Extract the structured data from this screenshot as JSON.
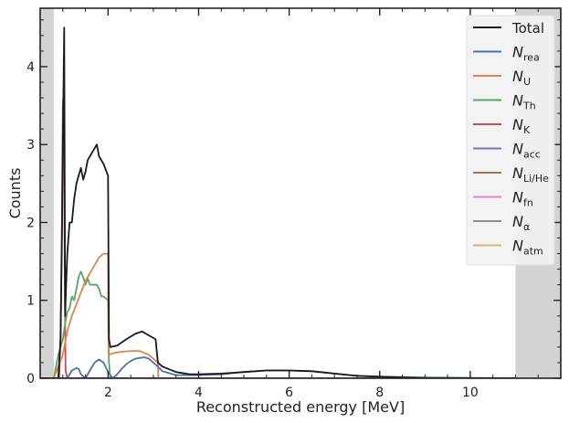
{
  "chart_data": {
    "type": "line",
    "title": "",
    "xlabel": "Reconstructed energy [MeV]",
    "ylabel": "Counts",
    "xlim": [
      0.5,
      12.0
    ],
    "ylim": [
      0,
      4.75
    ],
    "x_ticks": [
      2,
      4,
      6,
      8,
      10
    ],
    "x_tick_labels": [
      "2",
      "4",
      "6",
      "8",
      "10"
    ],
    "y_ticks": [
      0,
      1,
      2,
      3,
      4
    ],
    "y_tick_labels": [
      "0",
      "1",
      "2",
      "3",
      "4"
    ],
    "grid": false,
    "legend_placement": "top-right",
    "shaded_regions": [
      {
        "x0": 0.5,
        "x1": 0.8,
        "color": "#d3d3d3"
      },
      {
        "x0": 11.0,
        "x1": 12.0,
        "color": "#d3d3d3"
      }
    ],
    "series": [
      {
        "name": "Total",
        "label_base": "Total",
        "label_sub": "",
        "color": "#1a1a1a",
        "x": [
          0.5,
          0.9,
          0.95,
          0.98,
          1.0,
          1.03,
          1.05,
          1.08,
          1.1,
          1.15,
          1.2,
          1.25,
          1.3,
          1.35,
          1.4,
          1.45,
          1.5,
          1.55,
          1.6,
          1.65,
          1.7,
          1.75,
          1.8,
          1.9,
          2.0,
          2.02,
          2.05,
          2.2,
          2.4,
          2.6,
          2.75,
          2.9,
          3.05,
          3.1,
          3.2,
          3.5,
          3.8,
          4.0,
          4.5,
          5.0,
          5.5,
          6.0,
          6.5,
          7.0,
          7.5,
          8.0,
          8.5,
          9.0,
          10.0,
          11.0
        ],
        "y": [
          0,
          0,
          0.5,
          1.8,
          3.0,
          4.5,
          0.8,
          1.3,
          1.6,
          2.0,
          2.0,
          2.3,
          2.5,
          2.6,
          2.7,
          2.55,
          2.65,
          2.8,
          2.85,
          2.9,
          2.95,
          3.0,
          2.85,
          2.75,
          2.6,
          0.5,
          0.4,
          0.42,
          0.5,
          0.57,
          0.6,
          0.55,
          0.5,
          0.2,
          0.15,
          0.08,
          0.05,
          0.05,
          0.06,
          0.08,
          0.1,
          0.1,
          0.09,
          0.06,
          0.03,
          0.02,
          0.01,
          0.0,
          0.0,
          0.0
        ]
      },
      {
        "name": "N_rea",
        "label_base": "N",
        "label_sub": "rea",
        "color": "#4c72b0",
        "x": [
          0.5,
          1.1,
          1.2,
          1.3,
          1.35,
          1.4,
          1.5,
          1.6,
          1.7,
          1.8,
          1.9,
          2.0,
          2.1,
          2.2,
          2.3,
          2.4,
          2.5,
          2.6,
          2.7,
          2.8,
          2.9,
          3.0,
          3.1,
          3.2,
          3.5,
          4.0,
          4.5,
          5.0,
          5.5,
          6.0,
          6.5,
          7.0,
          7.5,
          8.0,
          9.0,
          11.0
        ],
        "y": [
          0,
          0,
          0.1,
          0.13,
          0.12,
          0.05,
          0.0,
          0.1,
          0.2,
          0.24,
          0.2,
          0.08,
          0.0,
          0.05,
          0.12,
          0.18,
          0.22,
          0.25,
          0.26,
          0.27,
          0.25,
          0.2,
          0.15,
          0.09,
          0.04,
          0.04,
          0.05,
          0.08,
          0.1,
          0.1,
          0.09,
          0.06,
          0.03,
          0.02,
          0.01,
          0.0
        ]
      },
      {
        "name": "N_U",
        "label_base": "N",
        "label_sub": "U",
        "color": "#dd8452",
        "x": [
          0.5,
          0.8,
          1.0,
          1.1,
          1.2,
          1.3,
          1.4,
          1.5,
          1.6,
          1.7,
          1.8,
          1.9,
          2.0,
          2.01,
          2.1,
          2.3,
          2.5,
          2.7,
          2.9,
          3.0,
          3.1,
          3.11,
          11.0
        ],
        "y": [
          0,
          0,
          0.3,
          0.6,
          0.8,
          0.95,
          1.1,
          1.25,
          1.35,
          1.45,
          1.55,
          1.6,
          1.6,
          0.3,
          0.32,
          0.34,
          0.35,
          0.35,
          0.3,
          0.25,
          0.2,
          0.0,
          0.0
        ]
      },
      {
        "name": "N_Th",
        "label_base": "N",
        "label_sub": "Th",
        "color": "#55a868",
        "x": [
          0.5,
          0.8,
          0.9,
          1.0,
          1.05,
          1.1,
          1.15,
          1.2,
          1.25,
          1.3,
          1.35,
          1.4,
          1.45,
          1.5,
          1.55,
          1.6,
          1.7,
          1.75,
          1.8,
          1.85,
          1.9,
          2.0,
          2.02,
          2.05,
          11.0
        ],
        "y": [
          0,
          0,
          0.3,
          0.5,
          0.7,
          0.85,
          0.9,
          1.05,
          1.0,
          1.15,
          1.3,
          1.37,
          1.3,
          1.2,
          1.28,
          1.2,
          1.2,
          1.2,
          1.15,
          1.05,
          1.05,
          1.0,
          0.2,
          0.0,
          0.0
        ]
      },
      {
        "name": "N_K",
        "label_base": "N",
        "label_sub": "K",
        "color": "#c44e52",
        "x": [
          0.5,
          0.92,
          0.95,
          0.98,
          1.0,
          1.02,
          1.04,
          1.06,
          1.1,
          11.0
        ],
        "y": [
          0,
          0,
          0.5,
          2.0,
          3.5,
          3.7,
          1.5,
          0.1,
          0.0,
          0.0
        ]
      },
      {
        "name": "N_acc",
        "label_base": "N",
        "label_sub": "acc",
        "color": "#8172b3",
        "x": [
          0.5,
          11.0
        ],
        "y": [
          0,
          0
        ]
      },
      {
        "name": "N_Li/He",
        "label_base": "N",
        "label_sub": "Li/He",
        "color": "#937860",
        "x": [
          0.5,
          11.0
        ],
        "y": [
          0,
          0
        ]
      },
      {
        "name": "N_fn",
        "label_base": "N",
        "label_sub": "fn",
        "color": "#da8bc3",
        "x": [
          0.5,
          11.0
        ],
        "y": [
          0,
          0
        ]
      },
      {
        "name": "N_α",
        "label_base": "N",
        "label_sub": "α",
        "color": "#8c8c8c",
        "x": [
          0.5,
          11.0
        ],
        "y": [
          0,
          0
        ]
      },
      {
        "name": "N_atm",
        "label_base": "N",
        "label_sub": "atm",
        "color": "#ccb974",
        "x": [
          0.5,
          11.0
        ],
        "y": [
          0,
          0
        ]
      }
    ]
  }
}
